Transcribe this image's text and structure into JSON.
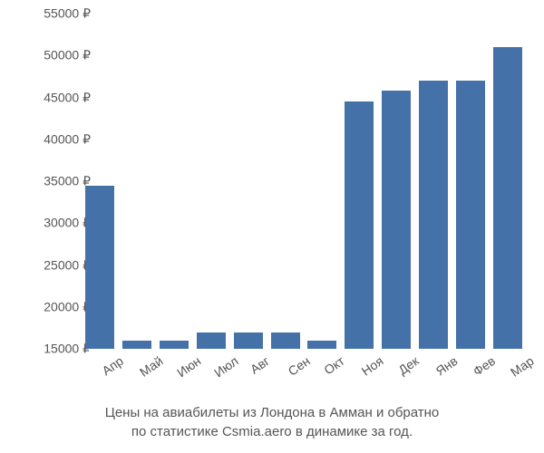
{
  "chart": {
    "type": "bar",
    "categories": [
      "Апр",
      "Май",
      "Июн",
      "Июл",
      "Авг",
      "Сен",
      "Окт",
      "Ноя",
      "Дек",
      "Янв",
      "Фев",
      "Мар"
    ],
    "values": [
      34500,
      16000,
      16000,
      17000,
      17000,
      17000,
      16000,
      44500,
      45800,
      47000,
      47000,
      51000
    ],
    "bar_color": "#4472a8",
    "ymin": 15000,
    "ymax": 55000,
    "ytick_step": 5000,
    "bar_width_ratio": 0.78,
    "currency_symbol": "₽",
    "tick_font_size": 14,
    "tick_color": "#555555",
    "background_color": "#ffffff",
    "caption_line1": "Цены на авиабилеты из Лондона в Амман и обратно",
    "caption_line2": "по статистике Csmia.aero в динамике за год.",
    "caption_font_size": 15
  }
}
